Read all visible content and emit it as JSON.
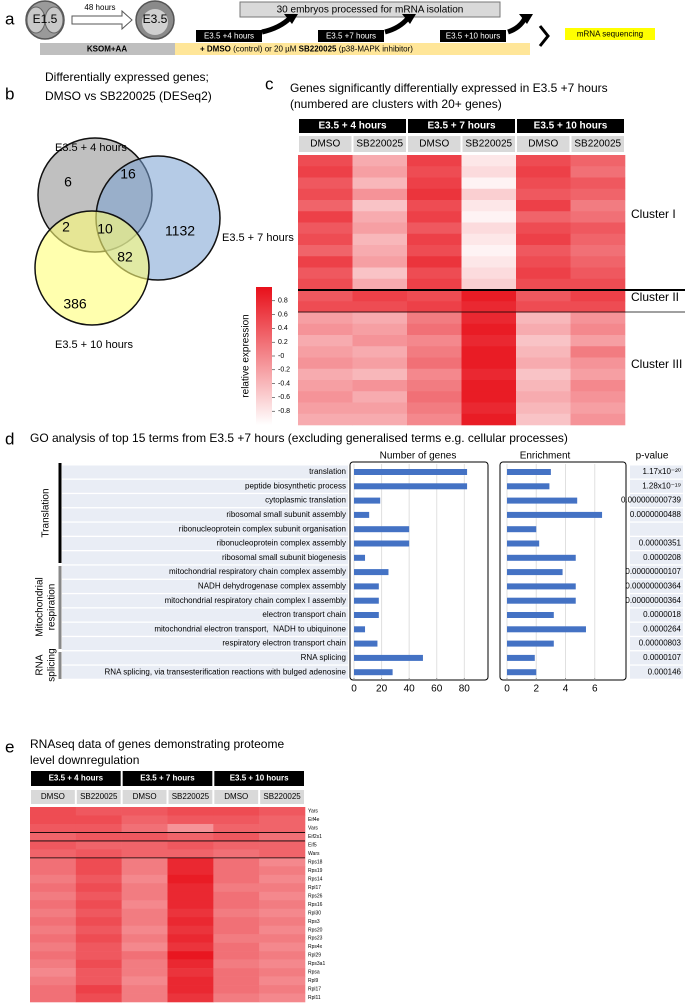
{
  "panel_labels": [
    "a",
    "b",
    "c",
    "d",
    "e"
  ],
  "panel_a": {
    "start_stage": "E1.5",
    "interval": "48 hours",
    "end_stage": "E3.5",
    "processing": "30 embryos processed for mRNA isolation",
    "timepoints": [
      "E3.5 +4 hours",
      "E3.5 +7 hours",
      "E3.5 +10 hours"
    ],
    "sequencing": "mRNA sequencing",
    "medium": "KSOM+AA",
    "treatment": [
      "+ DMSO",
      " (control) or 20 µM ",
      "SB220025",
      " (p38-MAPK inhibitor)"
    ]
  },
  "panel_b": {
    "title": [
      "Differentially expressed genes;",
      "DMSO vs SB220025 (DESeq2)"
    ],
    "sets": [
      "E3.5 + 4 hours",
      "E3.5 + 7 hours",
      "E3.5 + 10 hours"
    ],
    "regions": [
      6,
      16,
      2,
      10,
      1132,
      82,
      386
    ]
  },
  "panel_c": {
    "title": [
      "Genes significantly differentially expressed in E3.5 +7 hours",
      "(numbered are clusters with 20+ genes)"
    ],
    "groups": [
      "E3.5 + 4 hours",
      "E3.5 + 7 hours",
      "E3.5 + 10 hours"
    ],
    "columns": [
      "DMSO",
      "SB220025",
      "DMSO",
      "SB220025",
      "DMSO",
      "SB220025"
    ],
    "clusters": [
      "Cluster I",
      "Cluster II",
      "Cluster III"
    ],
    "colorbar": {
      "label": "relative expression",
      "clim": [
        -1,
        1
      ],
      "ticks": [
        0.8,
        0.6,
        0.4,
        0.2,
        {
          "value": 0,
          "label": "-0"
        },
        -0.2,
        -0.4,
        -0.6,
        -0.8
      ]
    },
    "values": [
      [
        0.5,
        -0.3,
        0.6,
        -0.8,
        0.5,
        0.3
      ],
      [
        0.6,
        -0.2,
        0.5,
        -0.7,
        0.6,
        0.2
      ],
      [
        0.4,
        -0.4,
        0.6,
        -0.9,
        0.5,
        0.4
      ],
      [
        0.5,
        -0.1,
        0.7,
        -0.6,
        0.4,
        0.3
      ],
      [
        0.3,
        -0.5,
        0.5,
        -0.8,
        0.6,
        0.1
      ],
      [
        0.6,
        -0.3,
        0.6,
        -0.9,
        0.3,
        0.2
      ],
      [
        0.4,
        -0.2,
        0.4,
        -0.7,
        0.5,
        0.4
      ],
      [
        0.5,
        -0.4,
        0.6,
        -0.8,
        0.6,
        0.3
      ],
      [
        0.3,
        -0.3,
        0.5,
        -0.9,
        0.4,
        0.2
      ],
      [
        0.6,
        -0.2,
        0.7,
        -0.8,
        0.5,
        0.3
      ],
      [
        0.4,
        -0.5,
        0.5,
        -0.7,
        0.6,
        0.4
      ],
      [
        0.5,
        -0.3,
        0.6,
        -0.6,
        0.5,
        0.5
      ],
      [
        0.4,
        0.6,
        0.5,
        0.9,
        0.4,
        0.6
      ],
      [
        0.5,
        0.5,
        0.6,
        0.8,
        0.5,
        0.5
      ],
      [
        -0.2,
        -0.3,
        0.1,
        0.8,
        -0.4,
        -0.1
      ],
      [
        -0.1,
        -0.2,
        0.2,
        0.9,
        -0.3,
        0.0
      ],
      [
        -0.3,
        -0.1,
        0.0,
        0.8,
        -0.5,
        -0.2
      ],
      [
        -0.2,
        -0.3,
        0.1,
        0.9,
        -0.4,
        0.1
      ],
      [
        -0.1,
        -0.2,
        0.2,
        0.9,
        -0.3,
        -0.1
      ],
      [
        -0.3,
        -0.4,
        0.0,
        0.8,
        -0.5,
        -0.2
      ],
      [
        -0.2,
        -0.1,
        0.1,
        0.9,
        -0.4,
        0.0
      ],
      [
        -0.1,
        -0.3,
        0.2,
        0.9,
        -0.3,
        -0.1
      ],
      [
        -0.2,
        -0.2,
        0.1,
        0.8,
        -0.4,
        -0.2
      ],
      [
        -0.3,
        -0.3,
        0.0,
        0.9,
        -0.5,
        -0.1
      ]
    ]
  },
  "panel_d": {
    "title": "GO analysis of top 15 terms from E3.5 +7 hours (excluding generalised terms e.g. cellular processes)",
    "groups": [
      [
        "Translation"
      ],
      [
        "Mitochondrial",
        "respiration"
      ],
      [
        "RNA",
        "splicing"
      ]
    ],
    "p_value_header": "p-value",
    "p_values": [
      "1.17x10⁻²⁰",
      "1.28x10⁻¹⁹",
      "0.000000000739",
      "0.0000000488",
      null,
      "0.00000351",
      "0.0000208",
      "0.00000000107",
      "0.00000000364",
      "0.00000000364",
      "0.0000018",
      "0.0000264",
      "0.00000803",
      "0.0000107",
      "0.000146"
    ]
  },
  "chart_data": [
    {
      "type": "bar",
      "title": "Number of genes",
      "categories": [
        "translation",
        "peptide biosynthetic process",
        "cytoplasmic translation",
        "ribosomal small subunit assembly",
        "ribonucleoprotein complex subunit organisation",
        "ribonucleoprotein complex assembly",
        "ribosomal small subunit biogenesis",
        "mitochondrial respiratory chain complex assembly",
        "NADH dehydrogenase complex assembly",
        "mitochondrial respiratory chain complex I assembly",
        "electron transport chain",
        "mitochondrial electron transport,  NADH to ubiquinone",
        "respiratory electron transport chain",
        "RNA splicing",
        "RNA splicing, via transesterification reactions with bulged adenosine"
      ],
      "values": [
        82,
        82,
        19,
        11,
        40,
        40,
        8,
        25,
        18,
        18,
        18,
        8,
        17,
        50,
        28
      ],
      "xlim": [
        0,
        95
      ],
      "xticks": [
        0,
        20,
        40,
        60,
        80
      ],
      "color": "#4472c4",
      "grid": true
    },
    {
      "type": "bar",
      "title": "Enrichment",
      "values": [
        3.0,
        2.9,
        4.8,
        6.5,
        2.0,
        2.2,
        4.7,
        3.8,
        4.7,
        4.7,
        3.2,
        5.4,
        3.2,
        1.9,
        2.0
      ],
      "xlim": [
        0,
        8
      ],
      "xticks": [
        0,
        2,
        4,
        6
      ],
      "color": "#4472c4",
      "grid": true
    }
  ],
  "panel_e": {
    "title": [
      "RNAseq data of genes demonstrating proteome",
      "level downregulation"
    ],
    "groups": [
      "E3.5 + 4 hours",
      "E3.5 + 7 hours",
      "E3.5 + 10 hours"
    ],
    "columns": [
      "DMSO",
      "SB220025",
      "DMSO",
      "SB220025",
      "DMSO",
      "SB220025"
    ],
    "genes": [
      "Yars",
      "Eif4e",
      "Vars",
      "Eif2s1",
      "Eif5",
      "Wars",
      "Rps18",
      "Rps19",
      "Rps14",
      "Rpl17",
      "Rps26",
      "Rps16",
      "Rpl30",
      "Rps3",
      "Rps20",
      "Rps23",
      "Rps4x",
      "Rpl29",
      "Rps3a1",
      "Rpsa",
      "Rpl9",
      "Rpl17",
      "Rpl11"
    ],
    "values": [
      [
        0.5,
        0.4,
        0.4,
        0.5,
        0.5,
        0.4
      ],
      [
        0.5,
        0.5,
        0.3,
        0.4,
        0.4,
        0.3
      ],
      [
        0.4,
        0.4,
        0.2,
        -0.1,
        0.3,
        0.3
      ],
      [
        0.3,
        0.4,
        0.4,
        0.3,
        0.4,
        0.2
      ],
      [
        0.4,
        0.3,
        0.3,
        0.4,
        0.3,
        0.3
      ],
      [
        0.3,
        0.4,
        0.3,
        0.3,
        0.2,
        0.3
      ],
      [
        0.2,
        0.5,
        0.1,
        0.8,
        0.2,
        0.0
      ],
      [
        0.2,
        0.5,
        0.1,
        0.8,
        0.2,
        0.1
      ],
      [
        0.1,
        0.4,
        0.0,
        0.9,
        0.2,
        0.0
      ],
      [
        0.2,
        0.5,
        0.1,
        0.8,
        0.1,
        0.1
      ],
      [
        0.1,
        0.4,
        0.1,
        0.8,
        0.2,
        0.0
      ],
      [
        0.2,
        0.5,
        0.0,
        0.8,
        0.2,
        0.1
      ],
      [
        0.1,
        0.4,
        0.1,
        0.7,
        0.1,
        0.0
      ],
      [
        0.2,
        0.5,
        0.1,
        0.8,
        0.2,
        0.1
      ],
      [
        0.1,
        0.4,
        0.0,
        0.7,
        0.2,
        0.0
      ],
      [
        0.2,
        0.5,
        0.1,
        0.8,
        0.1,
        0.1
      ],
      [
        0.1,
        0.4,
        0.0,
        0.7,
        0.2,
        0.0
      ],
      [
        0.2,
        0.4,
        0.2,
        0.95,
        0.2,
        0.1
      ],
      [
        0.1,
        0.5,
        0.1,
        0.8,
        0.1,
        0.0
      ],
      [
        0.0,
        0.4,
        0.1,
        0.7,
        0.2,
        0.1
      ],
      [
        0.1,
        0.4,
        0.0,
        0.8,
        0.2,
        0.0
      ],
      [
        0.2,
        0.6,
        0.1,
        0.8,
        0.2,
        0.1
      ],
      [
        0.2,
        0.5,
        0.1,
        0.7,
        0.1,
        0.0
      ]
    ]
  }
}
